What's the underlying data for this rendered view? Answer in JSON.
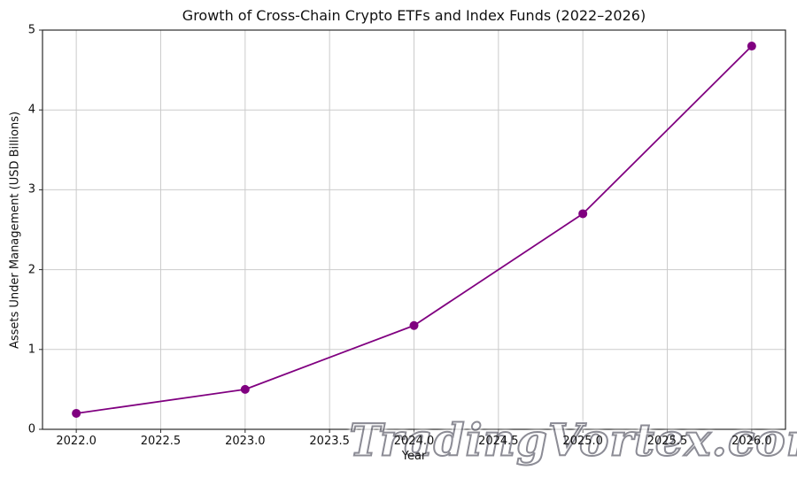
{
  "figure": {
    "watermark_text": "TradingVortex.com",
    "background_color": "#ffffff"
  },
  "chart_data": {
    "type": "line",
    "title": "Growth of Cross-Chain Crypto ETFs and Index Funds (2022–2026)",
    "xlabel": "Year",
    "ylabel": "Assets Under Management (USD Billions)",
    "x": [
      2022,
      2023,
      2024,
      2025,
      2026
    ],
    "values": [
      0.2,
      0.5,
      1.3,
      2.7,
      4.8
    ],
    "line_color": "#800080",
    "marker": "circle",
    "marker_color": "#800080",
    "grid": true,
    "grid_color": "#cbcbcb",
    "spine_color": "#2b2b2b",
    "tick_color": "#2b2b2b",
    "xlim": [
      2021.8,
      2026.2
    ],
    "ylim": [
      0,
      5
    ],
    "xticks": [
      2022.0,
      2022.5,
      2023.0,
      2023.5,
      2024.0,
      2024.5,
      2025.0,
      2025.5,
      2026.0
    ],
    "xtick_labels": [
      "2022.0",
      "2022.5",
      "2023.0",
      "2023.5",
      "2024.0",
      "2024.5",
      "2025.0",
      "2025.5",
      "2026.0"
    ],
    "yticks": [
      0,
      1,
      2,
      3,
      4,
      5
    ],
    "ytick_labels": [
      "0",
      "1",
      "2",
      "3",
      "4",
      "5"
    ],
    "legend": null
  }
}
